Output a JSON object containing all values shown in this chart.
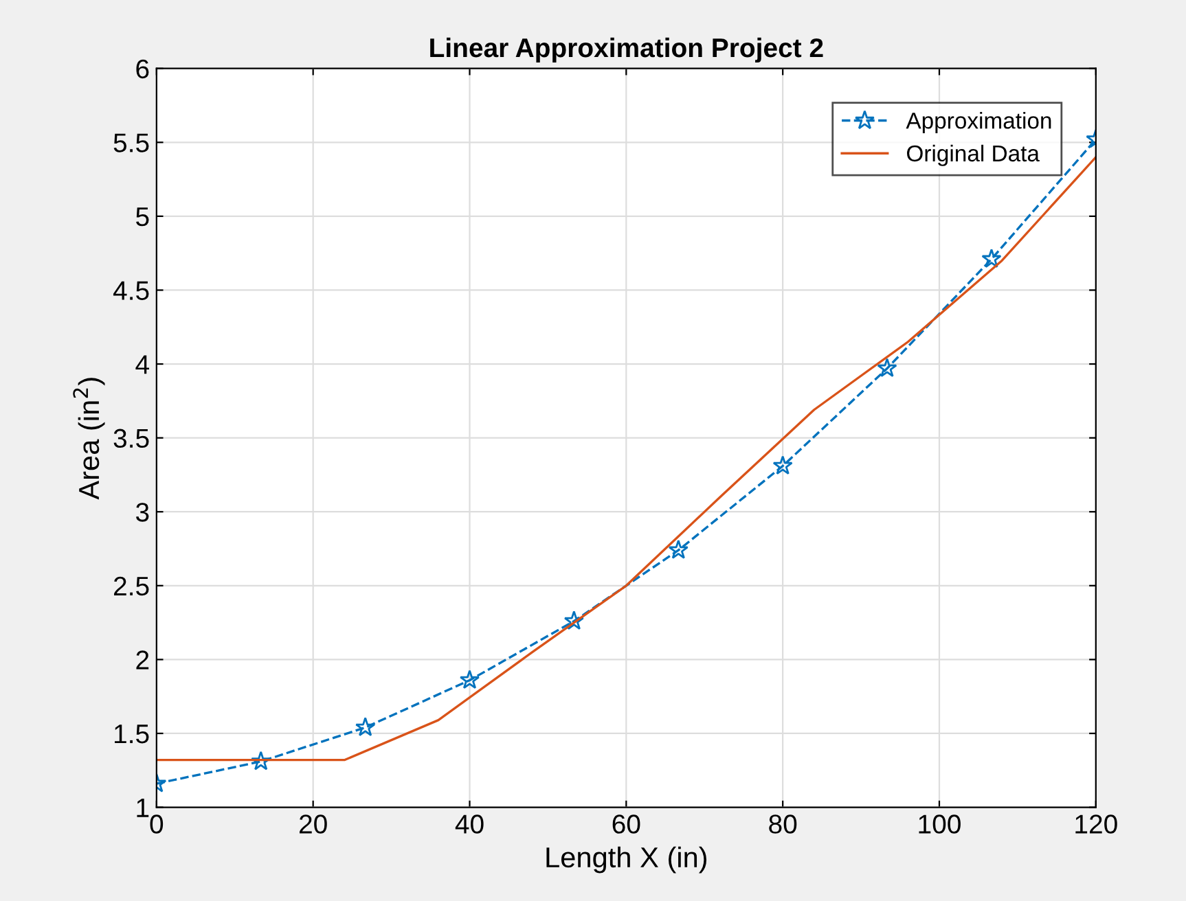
{
  "chart_data": {
    "type": "line",
    "title": "Linear Approximation Project 2",
    "xlabel": "Length X (in)",
    "ylabel": "Area (in$^{2}$)",
    "xlim": [
      0,
      120
    ],
    "xticks": [
      0,
      20,
      40,
      60,
      80,
      100,
      120
    ],
    "ylim": [
      1,
      6
    ],
    "yticks": [
      1,
      1.5,
      2,
      2.5,
      3,
      3.5,
      4,
      4.5,
      5,
      5.5,
      6
    ],
    "grid": true,
    "legend": "top right",
    "series": [
      {
        "name": "Approximation",
        "color": "#0072bd",
        "marker": "star",
        "line_style": "dashed",
        "x": [
          0,
          13.33,
          26.67,
          40,
          53.33,
          66.67,
          80,
          93.33,
          106.67,
          120
        ],
        "values": [
          1.16,
          1.31,
          1.54,
          1.86,
          2.26,
          2.74,
          3.31,
          3.97,
          4.71,
          5.52
        ]
      },
      {
        "name": "Original Data",
        "color": "#d95319",
        "marker": "none",
        "line_style": "solid",
        "x": [
          0,
          24,
          36,
          48,
          60,
          72,
          84,
          96,
          108,
          120
        ],
        "values": [
          1.32,
          1.32,
          1.59,
          2.05,
          2.5,
          3.1,
          3.69,
          4.15,
          4.7,
          5.4
        ]
      }
    ]
  }
}
